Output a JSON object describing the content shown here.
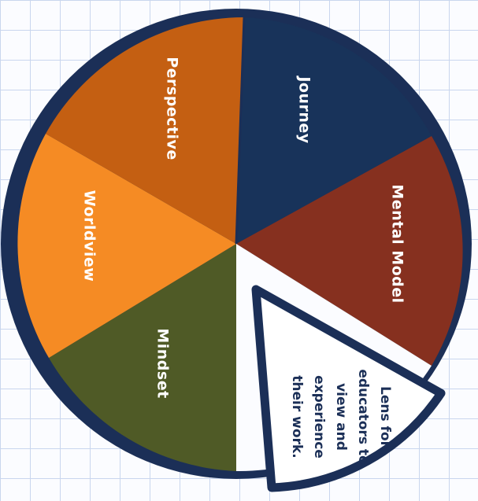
{
  "diagram": {
    "segments": [
      {
        "label": "Journey",
        "color": "#18335a"
      },
      {
        "label": "Mental Model",
        "color": "#86301f"
      },
      {
        "label": "Mindset",
        "color": "#4f5a26"
      },
      {
        "label": "Worldview",
        "color": "#f58b24"
      },
      {
        "label": "Perspective",
        "color": "#c45f12"
      }
    ],
    "lens": {
      "lines": [
        "Lens for",
        "educators to",
        "view and",
        "experience",
        "their work."
      ],
      "color": "#ffffff"
    },
    "outline_color": "#1b2f57"
  }
}
